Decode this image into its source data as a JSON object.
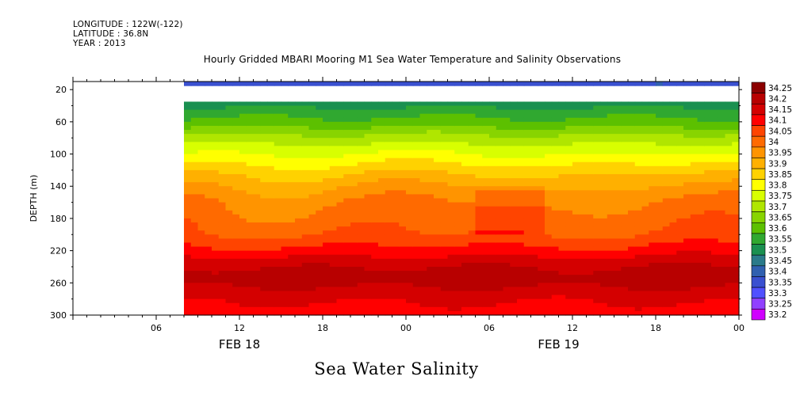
{
  "header": {
    "longitude": "LONGITUDE : 122W(-122)",
    "latitude": "LATITUDE : 36.8N",
    "year": "YEAR : 2013"
  },
  "chart_data": {
    "type": "heatmap",
    "title": "Hourly Gridded MBARI Mooring M1 Sea Water Temperature and Salinity Observations",
    "bottom_title": "Sea Water Salinity",
    "ylabel": "DEPTH (m)",
    "y_reversed": true,
    "ylim": [
      300,
      10
    ],
    "y_ticks": [
      20,
      60,
      100,
      140,
      180,
      220,
      260,
      300
    ],
    "x_hours_range": [
      0,
      48
    ],
    "x_ticks": [
      {
        "hour": 6,
        "label": "06"
      },
      {
        "hour": 12,
        "label": "12"
      },
      {
        "hour": 18,
        "label": "18"
      },
      {
        "hour": 24,
        "label": "00"
      },
      {
        "hour": 30,
        "label": "06"
      },
      {
        "hour": 36,
        "label": "12"
      },
      {
        "hour": 42,
        "label": "18"
      },
      {
        "hour": 48,
        "label": "00"
      }
    ],
    "date_labels": [
      {
        "hour": 12,
        "label": "FEB 18"
      },
      {
        "hour": 35,
        "label": "FEB 19"
      }
    ],
    "data_start_hour": 8,
    "colorbar": {
      "levels": [
        "34.25",
        "34.2",
        "34.15",
        "34.1",
        "34.05",
        "34",
        "33.95",
        "33.9",
        "33.85",
        "33.8",
        "33.75",
        "33.7",
        "33.65",
        "33.6",
        "33.55",
        "33.5",
        "33.45",
        "33.4",
        "33.35",
        "33.3",
        "33.25",
        "33.2"
      ],
      "colors": [
        "#8b0000",
        "#b80000",
        "#d40000",
        "#ff0000",
        "#ff4400",
        "#ff6a00",
        "#ff9400",
        "#ffb000",
        "#ffd200",
        "#ffff00",
        "#d8ff00",
        "#b0e600",
        "#88d400",
        "#5cc000",
        "#30a830",
        "#1a9050",
        "#2a7a8a",
        "#3060b0",
        "#3a50d0",
        "#5050ff",
        "#9040ff",
        "#d000ff"
      ]
    },
    "depth_profile": [
      {
        "depth": 10,
        "salinity": 33.37
      },
      {
        "depth": 35,
        "salinity": 33.52
      },
      {
        "depth": 60,
        "salinity": 33.62
      },
      {
        "depth": 80,
        "salinity": 33.72
      },
      {
        "depth": 100,
        "salinity": 33.8
      },
      {
        "depth": 120,
        "salinity": 33.88
      },
      {
        "depth": 140,
        "salinity": 33.95
      },
      {
        "depth": 160,
        "salinity": 34.0
      },
      {
        "depth": 200,
        "salinity": 34.05
      },
      {
        "depth": 220,
        "salinity": 34.12
      },
      {
        "depth": 240,
        "salinity": 34.2
      },
      {
        "depth": 255,
        "salinity": 34.23
      },
      {
        "depth": 275,
        "salinity": 34.17
      },
      {
        "depth": 300,
        "salinity": 34.12
      }
    ],
    "data_gap_depths": [
      15,
      35
    ]
  }
}
